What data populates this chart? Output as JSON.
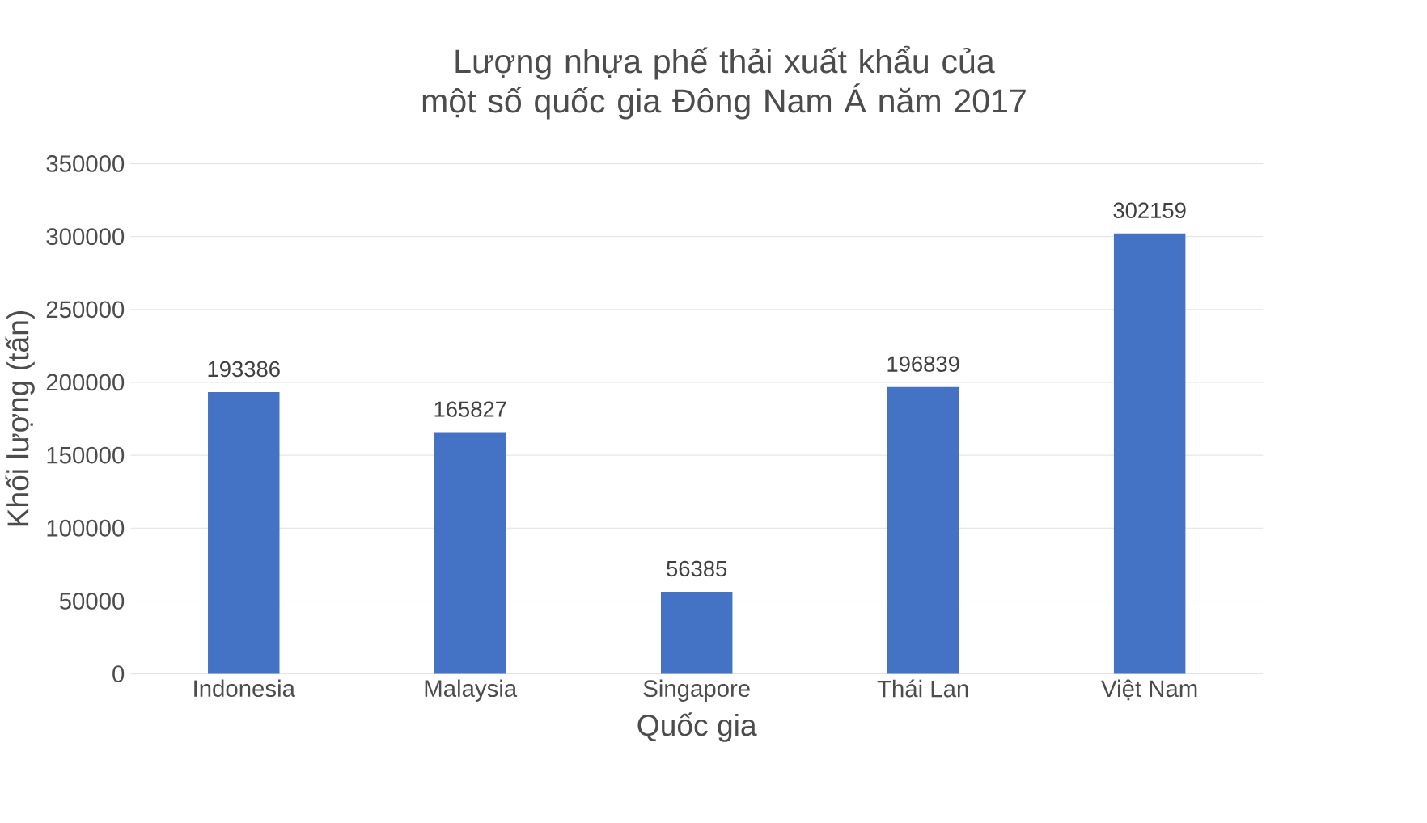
{
  "chart_data": {
    "type": "bar",
    "title": "Lượng nhựa phế thải xuất khẩu của một số quốc gia Đông Nam Á năm 2017",
    "xlabel": "Quốc gia",
    "ylabel": "Khối lượng (tấn)",
    "categories": [
      "Indonesia",
      "Malaysia",
      "Singapore",
      "Thái Lan",
      "Việt Nam"
    ],
    "values": [
      193386,
      165827,
      56385,
      196839,
      302159
    ],
    "color": "#4472c4",
    "ylim": [
      0,
      350000
    ],
    "yticks": [
      0,
      50000,
      100000,
      150000,
      200000,
      250000,
      300000,
      350000
    ],
    "grid": "y",
    "data_labels": true
  }
}
